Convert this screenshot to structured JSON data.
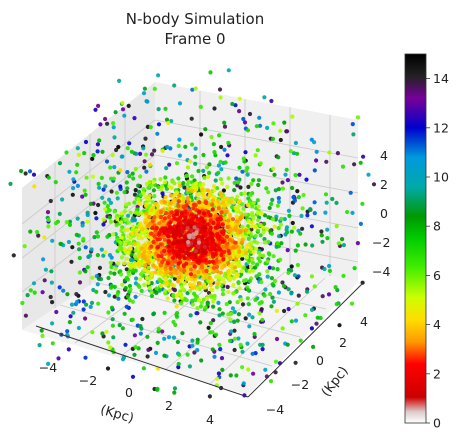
{
  "chart_data": {
    "type": "scatter",
    "title": "N-body Simulation",
    "subtitle": "Frame 0",
    "x_label": "(Kpc)",
    "y_label": "(Kpc)",
    "x_ticks": [
      "−4",
      "−2",
      "0",
      "2",
      "4"
    ],
    "y_ticks": [
      "−4",
      "−2",
      "0",
      "2",
      "4"
    ],
    "z_ticks": [
      "−4",
      "−2",
      "0",
      "2",
      "4"
    ],
    "xlim": [
      -5,
      5
    ],
    "ylim": [
      -5,
      5
    ],
    "zlim": [
      -5,
      5
    ],
    "grid": true,
    "colorbar": {
      "min": 0,
      "max": 15,
      "ticks": [
        "0",
        "2",
        "4",
        "6",
        "8",
        "10",
        "12",
        "14"
      ],
      "colormap": "nipy_spectral"
    },
    "point_cloud": {
      "description_of_distribution": "dense roughly spherical core near origin, sparse halo to box edges",
      "core_sigma_kpc": 1.3,
      "halo_count": 1100,
      "core_count": 2600,
      "core_value_range": [
        0,
        5
      ],
      "halo_value_range": [
        4,
        15
      ]
    }
  }
}
